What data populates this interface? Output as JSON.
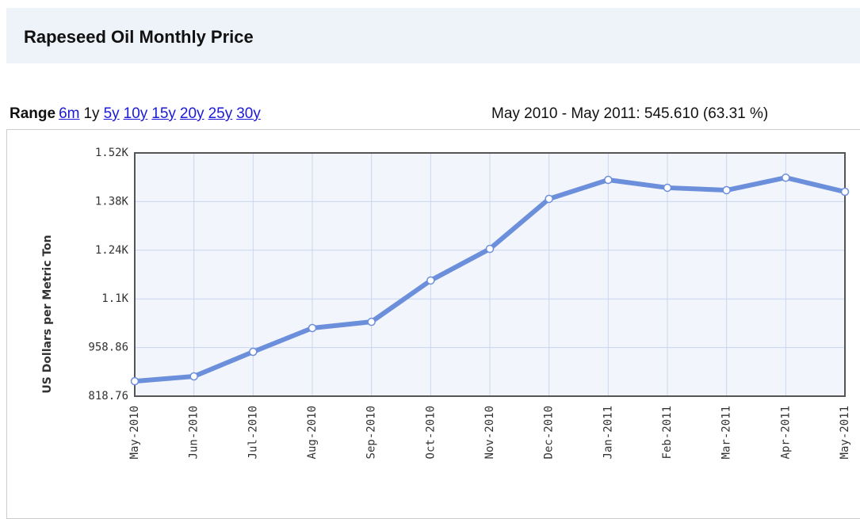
{
  "header": {
    "title": "Rapeseed Oil Monthly Price"
  },
  "range": {
    "label": "Range",
    "options": [
      "6m",
      "1y",
      "5y",
      "10y",
      "15y",
      "20y",
      "25y",
      "30y"
    ],
    "current": 1
  },
  "summary": "May 2010 - May 2011: 545.610 (63.31 %)",
  "chart_data": {
    "type": "line",
    "ylabel": "US Dollars per Metric Ton",
    "categories": [
      "May-2010",
      "Jun-2010",
      "Jul-2010",
      "Aug-2010",
      "Sep-2010",
      "Oct-2010",
      "Nov-2010",
      "Dec-2010",
      "Jan-2011",
      "Feb-2011",
      "Mar-2011",
      "Apr-2011",
      "May-2011"
    ],
    "series": [
      {
        "name": "Rapeseed Oil",
        "color": "#6b8fdb",
        "values": [
          861.8,
          875.8,
          946.5,
          1015,
          1033,
          1152,
          1243,
          1387,
          1441.7,
          1419,
          1412,
          1448,
          1407.4
        ]
      }
    ],
    "ylim": [
      818.76,
      1519.26
    ],
    "yticks": [
      818.76,
      958.86,
      {
        "value": 1098.96,
        "label": "1.1K"
      },
      {
        "value": 1239.06,
        "label": "1.24K"
      },
      {
        "value": 1379.16,
        "label": "1.38K"
      },
      {
        "value": 1519.26,
        "label": "1.52K"
      }
    ],
    "grid": true
  }
}
